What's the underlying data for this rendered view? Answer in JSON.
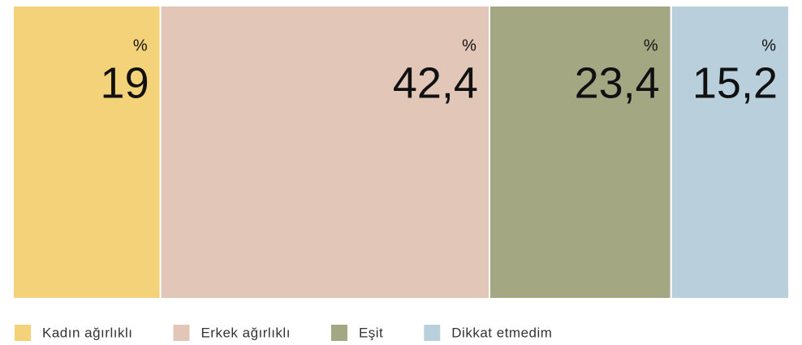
{
  "chart_data": {
    "type": "stacked-bar-horizontal",
    "unit": "%",
    "xlim": [
      0,
      100
    ],
    "series": [
      {
        "name": "Kadın ağırlıklı",
        "color": "#f4d27a",
        "values": [
          19
        ],
        "value_labels": [
          "19"
        ]
      },
      {
        "name": "Erkek ağırlıklı",
        "color": "#e2c6b8",
        "values": [
          42.4
        ],
        "value_labels": [
          "42,4"
        ]
      },
      {
        "name": "Eşit",
        "color": "#a3a883",
        "values": [
          23.4
        ],
        "value_labels": [
          "23,4"
        ]
      },
      {
        "name": "Dikkat etmedim",
        "color": "#b9d0dc",
        "values": [
          15.2
        ],
        "value_labels": [
          "15,2"
        ]
      }
    ]
  }
}
